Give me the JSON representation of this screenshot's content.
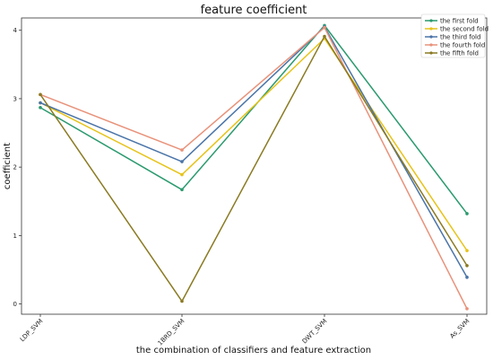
{
  "chart_data": {
    "type": "line",
    "title": "feature coefficient",
    "xlabel": "the combination of classifiers and feature extraction",
    "ylabel": "coefficient",
    "categories": [
      "LDP_SVM",
      "1BRD_SVM",
      "DWT_SVM",
      "As_SVM"
    ],
    "yticks": [
      0,
      1,
      2,
      3,
      4
    ],
    "ylim": [
      -0.15,
      4.18
    ],
    "grid": false,
    "legend_position": "top-right",
    "series": [
      {
        "name": "the first fold",
        "color": "#2a9a6e",
        "values": [
          2.87,
          1.67,
          4.07,
          1.32
        ]
      },
      {
        "name": "the second fold",
        "color": "#e6c319",
        "values": [
          2.94,
          1.89,
          3.88,
          0.78
        ]
      },
      {
        "name": "the third fold",
        "color": "#4a74a8",
        "values": [
          2.94,
          2.08,
          4.05,
          0.39
        ]
      },
      {
        "name": "the fourth fold",
        "color": "#e8927a",
        "values": [
          3.06,
          2.25,
          4.04,
          -0.07
        ]
      },
      {
        "name": "the fifth fold",
        "color": "#8a7a22",
        "values": [
          3.06,
          0.04,
          3.91,
          0.56
        ]
      }
    ]
  }
}
